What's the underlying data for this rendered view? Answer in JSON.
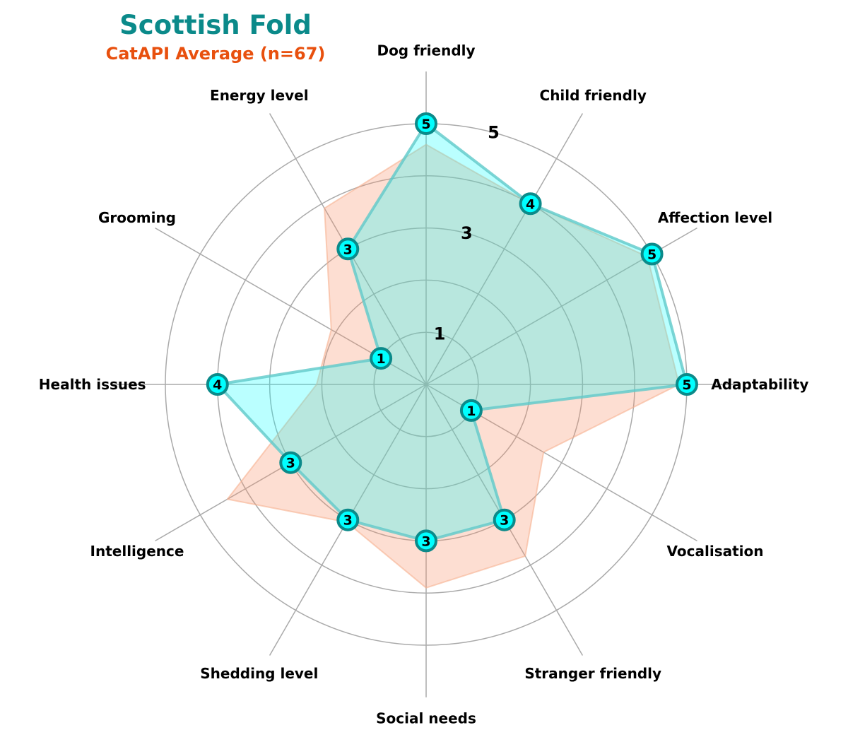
{
  "chart_data": {
    "type": "radar",
    "title": "Scottish Fold",
    "subtitle": "CatAPI Average (n=67)",
    "categories": [
      "Adaptability",
      "Affection level",
      "Child friendly",
      "Dog friendly",
      "Energy level",
      "Grooming",
      "Health issues",
      "Intelligence",
      "Shedding level",
      "Social needs",
      "Stranger friendly",
      "Vocalisation"
    ],
    "series": [
      {
        "name": "Scottish Fold",
        "values": [
          5,
          5,
          4,
          5,
          3,
          1,
          4,
          3,
          3,
          3,
          3,
          1
        ],
        "color": "#00ffff"
      },
      {
        "name": "CatAPI Average (n=67)",
        "values": [
          4.85,
          4.9,
          4.0,
          4.6,
          3.9,
          2.1,
          2.1,
          4.4,
          3.05,
          3.9,
          3.8,
          2.6
        ],
        "color": "#f9936a"
      }
    ],
    "rlim": [
      0,
      5
    ],
    "ring_ticks": [
      1,
      2,
      3,
      4,
      5
    ],
    "ring_labels": [
      "1",
      "3",
      "5"
    ],
    "grid": true
  },
  "colors": {
    "title": "#0b8a8a",
    "subtitle": "#e8500e",
    "grid": "#aaaaaa",
    "marker_edge": "#0b8a8a"
  }
}
